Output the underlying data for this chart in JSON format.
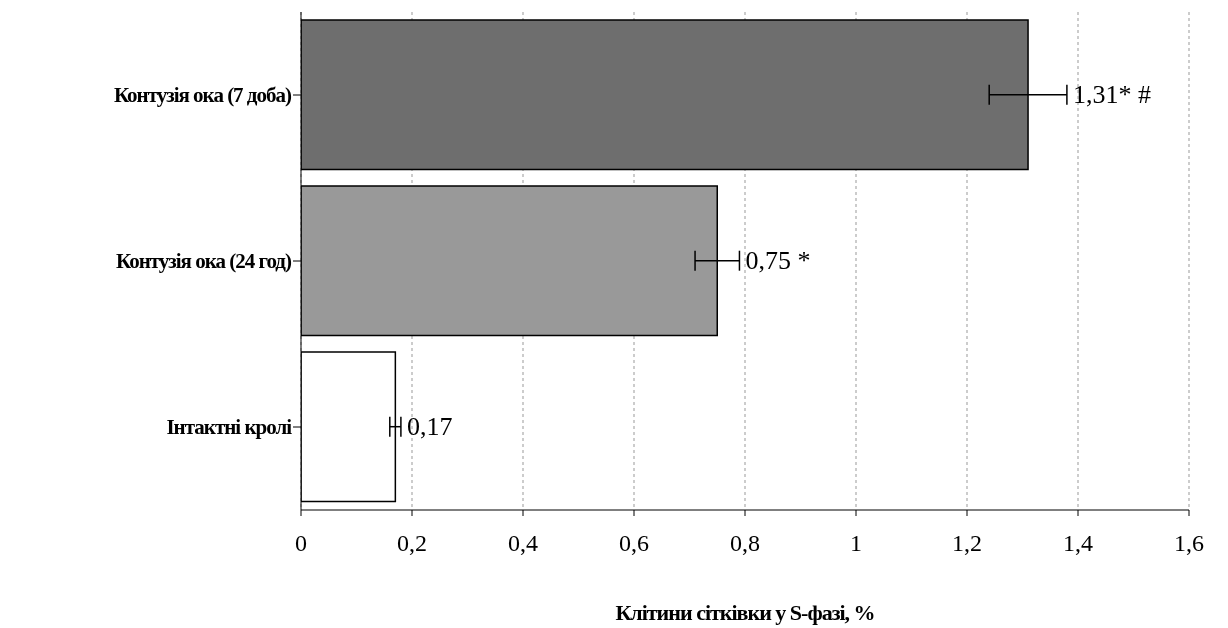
{
  "chart_data": {
    "type": "bar",
    "orientation": "horizontal",
    "categories": [
      "Контузія ока (7 доба)",
      "Контузія ока (24 год)",
      "Інтактні кролі"
    ],
    "values": [
      1.31,
      0.75,
      0.17
    ],
    "errors": [
      0.07,
      0.04,
      0.01
    ],
    "colors": [
      "#6e6e6e",
      "#999999",
      "#ffffff"
    ],
    "value_labels": [
      "1,31* #",
      "0,75 *",
      "0,17"
    ],
    "xlim": [
      0,
      1.6
    ],
    "xticks": [
      0,
      {
        "value": 0.2,
        "label": "0,2"
      },
      {
        "value": 0.4,
        "label": "0,4"
      },
      {
        "value": 0.6,
        "label": "0,6"
      },
      {
        "value": 0.8,
        "label": "0,8"
      },
      1,
      {
        "value": 1.2,
        "label": "1,2"
      },
      {
        "value": 1.4,
        "label": "1,4"
      },
      {
        "value": 1.6,
        "label": "1,6"
      }
    ],
    "xlabel": "Клітини сітківки у S-фазі, %",
    "grid": "x",
    "legend": false
  }
}
